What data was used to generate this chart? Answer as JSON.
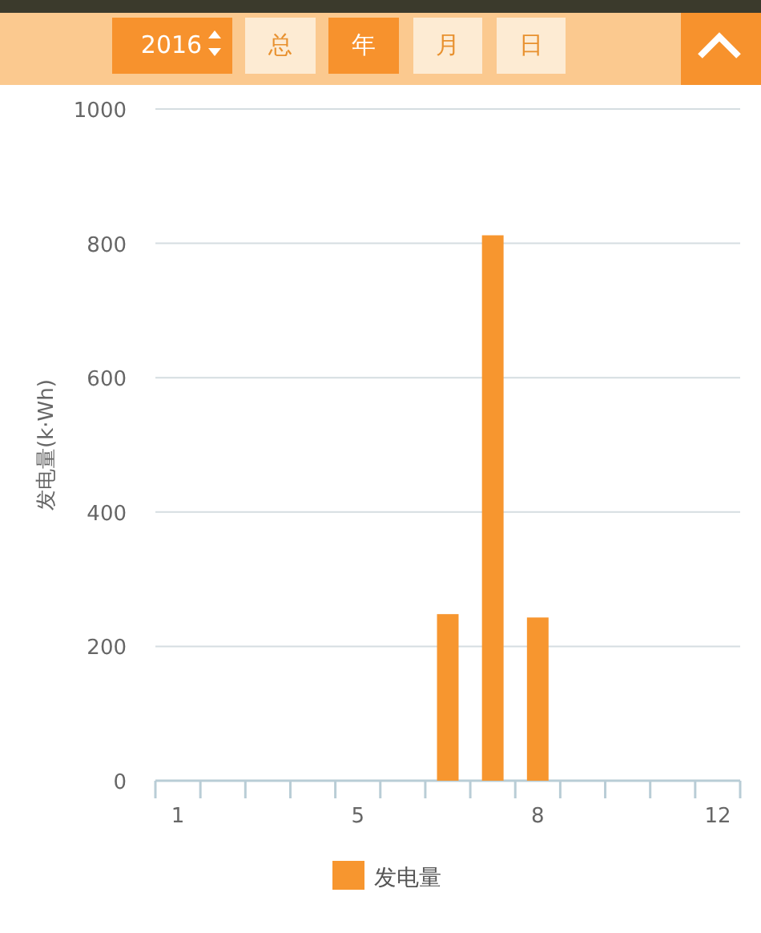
{
  "chart_data": {
    "type": "bar",
    "annotations": [
      "2016",
      "总",
      "年",
      "月",
      "日"
    ],
    "ylabel": "发电量(k·Wh)",
    "categories": [
      "1",
      null,
      null,
      null,
      "5",
      null,
      null,
      null,
      "8",
      null,
      null,
      null,
      "12"
    ],
    "series": [
      {
        "name": "发电量",
        "color": "#f7962f",
        "values": [
          0,
          0,
          0,
          0,
          0,
          0,
          248,
          812,
          243,
          0,
          0,
          0,
          0
        ]
      }
    ],
    "ylim": [
      0,
      1000
    ],
    "yticks": [
      0,
      200,
      400,
      600,
      800,
      1000
    ],
    "grid": "y",
    "legend": "bottom"
  }
}
